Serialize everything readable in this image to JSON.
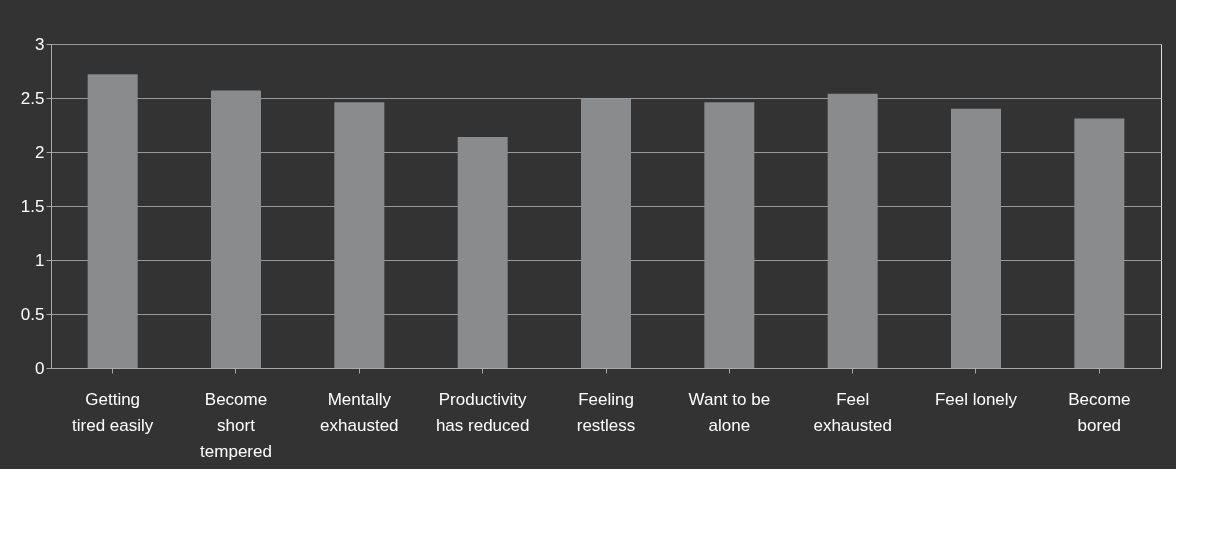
{
  "chart_data": {
    "type": "bar",
    "categories": [
      "Getting\ntired easily",
      "Become\nshort\ntempered",
      "Mentally\nexhausted",
      "Productivity\nhas reduced",
      "Feeling\nrestless",
      "Want to be\nalone",
      "Feel\nexhausted",
      "Feel lonely",
      "Become\nbored"
    ],
    "values": [
      2.72,
      2.57,
      2.46,
      2.14,
      2.49,
      2.46,
      2.54,
      2.4,
      2.31
    ],
    "color": "#8a8b8d",
    "ylim": [
      0,
      3
    ],
    "yticks": [
      0,
      0.5,
      1,
      1.5,
      2,
      2.5,
      3
    ],
    "grid": "y"
  }
}
